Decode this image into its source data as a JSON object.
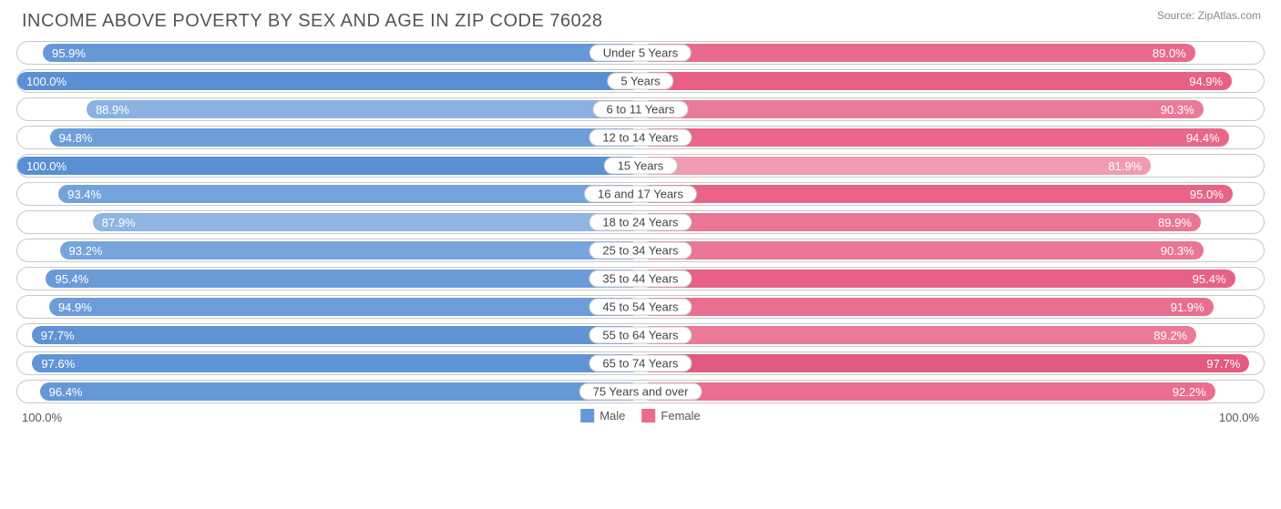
{
  "chart": {
    "title": "INCOME ABOVE POVERTY BY SEX AND AGE IN ZIP CODE 76028",
    "source": "Source: ZipAtlas.com",
    "type": "bar",
    "orientation": "diverging-horizontal",
    "background_color": "#ffffff",
    "border_color": "#c9c9c9",
    "label_pill_border": "#c9c9c9",
    "title_color": "#555555",
    "title_fontsize": 20,
    "value_fontsize": 13,
    "label_fontsize": 13,
    "axis": {
      "left": "100.0%",
      "right": "100.0%",
      "max": 100.0
    },
    "legend": {
      "items": [
        {
          "label": "Male",
          "color": "#6698d8"
        },
        {
          "label": "Female",
          "color": "#e86b8e"
        }
      ]
    },
    "male_base_color": "#6698d8",
    "female_base_color": "#e86b8e",
    "rows": [
      {
        "category": "Under 5 Years",
        "male": 95.9,
        "female": 89.0,
        "male_color": "#6698d8",
        "female_color": "#e86b8e"
      },
      {
        "category": "5 Years",
        "male": 100.0,
        "female": 94.9,
        "male_color": "#5a8fd4",
        "female_color": "#e86084"
      },
      {
        "category": "6 to 11 Years",
        "male": 88.9,
        "female": 90.3,
        "male_color": "#8bb1e1",
        "female_color": "#ea7a9a"
      },
      {
        "category": "12 to 14 Years",
        "male": 94.8,
        "female": 94.4,
        "male_color": "#6d9ed9",
        "female_color": "#e86788"
      },
      {
        "category": "15 Years",
        "male": 100.0,
        "female": 81.9,
        "male_color": "#5a8fd4",
        "female_color": "#f09bb3"
      },
      {
        "category": "16 and 17 Years",
        "male": 93.4,
        "female": 95.0,
        "male_color": "#74a3db",
        "female_color": "#e86387"
      },
      {
        "category": "18 to 24 Years",
        "male": 87.9,
        "female": 89.9,
        "male_color": "#90b5e2",
        "female_color": "#ea7695"
      },
      {
        "category": "25 to 34 Years",
        "male": 93.2,
        "female": 90.3,
        "male_color": "#76a4db",
        "female_color": "#ea7594"
      },
      {
        "category": "35 to 44 Years",
        "male": 95.4,
        "female": 95.4,
        "male_color": "#6a9bd8",
        "female_color": "#e76185"
      },
      {
        "category": "45 to 54 Years",
        "male": 94.9,
        "female": 91.9,
        "male_color": "#6c9dd9",
        "female_color": "#e96f90"
      },
      {
        "category": "55 to 64 Years",
        "male": 97.7,
        "female": 89.2,
        "male_color": "#6093d5",
        "female_color": "#eb7998"
      },
      {
        "category": "65 to 74 Years",
        "male": 97.6,
        "female": 97.7,
        "male_color": "#6194d6",
        "female_color": "#e25a7f"
      },
      {
        "category": "75 Years and over",
        "male": 96.4,
        "female": 92.2,
        "male_color": "#6598d7",
        "female_color": "#e96e8f"
      }
    ]
  }
}
